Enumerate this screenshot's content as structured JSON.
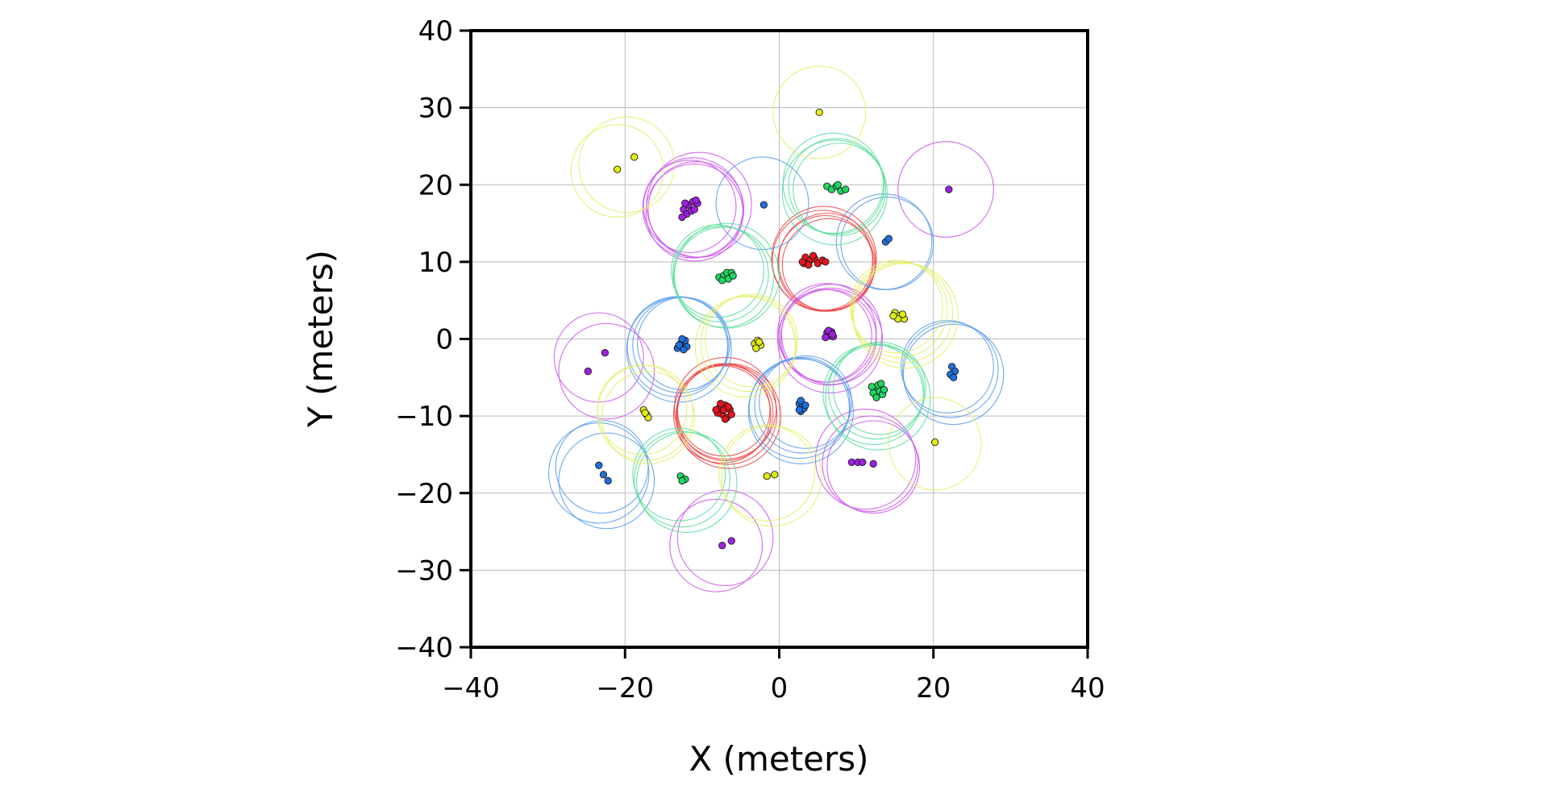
{
  "chart_data": {
    "type": "scatter",
    "title": "",
    "xlabel": "X (meters)",
    "ylabel": "Y (meters)",
    "xlim": [
      -40,
      40
    ],
    "ylim": [
      -40,
      40
    ],
    "xticks": [
      -40,
      -20,
      0,
      20,
      40
    ],
    "yticks": [
      -40,
      -30,
      -20,
      -10,
      0,
      10,
      20,
      30,
      40
    ],
    "xtick_labels": [
      "−40",
      "−20",
      "0",
      "20",
      "40"
    ],
    "ytick_labels": [
      "−40",
      "−30",
      "−20",
      "−10",
      "0",
      "10",
      "20",
      "30",
      "40"
    ],
    "grid": true,
    "legend": false,
    "colors": {
      "red": "#e8141c",
      "purple": "#a020e0",
      "blue": "#1f6fe0",
      "green": "#20d860",
      "yellow": "#e0ee10"
    },
    "ring_colors": {
      "red": "#ee4040",
      "purple": "#cc50ee",
      "blue": "#5599ee",
      "green": "#55dd99",
      "yellow": "#e4ee60"
    },
    "clusters": [
      {
        "color": "red",
        "points": [
          [
            -7.8,
            -9
          ],
          [
            -7,
            -8.6
          ],
          [
            -6.4,
            -9.2
          ],
          [
            -7.4,
            -9.8
          ],
          [
            -6.8,
            -10.2
          ],
          [
            -8,
            -9.6
          ],
          [
            -7.2,
            -9.2
          ],
          [
            -6.2,
            -9.8
          ],
          [
            -7.6,
            -8.4
          ],
          [
            -6.6,
            -8.8
          ],
          [
            -8.2,
            -9.2
          ],
          [
            -7,
            -10.4
          ]
        ],
        "rings": [
          [
            -7,
            -9.6,
            6.2
          ],
          [
            -6.8,
            -9.8,
            6.5
          ],
          [
            -7.2,
            -9.2,
            6.0
          ],
          [
            -6.6,
            -10,
            6.8
          ],
          [
            -7.4,
            -9.8,
            6.3
          ],
          [
            -7,
            -9,
            6.6
          ]
        ]
      },
      {
        "color": "red",
        "points": [
          [
            3.4,
            10.6
          ],
          [
            4,
            10.2
          ],
          [
            4.6,
            10.4
          ],
          [
            3.2,
            9.8
          ],
          [
            5,
            9.8
          ],
          [
            5.6,
            10.2
          ],
          [
            6,
            10
          ],
          [
            3.8,
            9.6
          ],
          [
            4.4,
            10.8
          ],
          [
            3,
            10
          ]
        ],
        "rings": [
          [
            6,
            9.8,
            6.2
          ],
          [
            5.6,
            10.2,
            6.5
          ],
          [
            6.4,
            9.6,
            6.0
          ],
          [
            5.8,
            10.4,
            6.8
          ],
          [
            6.2,
            10,
            6.3
          ]
        ]
      },
      {
        "color": "purple",
        "points": [
          [
            6.2,
            0.8
          ],
          [
            6.6,
            0.4
          ],
          [
            6.8,
            0.9
          ],
          [
            6,
            0.2
          ],
          [
            7,
            0.3
          ],
          [
            6.4,
            1.1
          ],
          [
            6.9,
            0.6
          ]
        ],
        "rings": [
          [
            6.4,
            0.2,
            6.2
          ],
          [
            6.8,
            0.6,
            6.5
          ],
          [
            6,
            0.4,
            6.0
          ],
          [
            6.6,
            -0.2,
            6.8
          ],
          [
            6.2,
            0.8,
            6.4
          ]
        ]
      },
      {
        "color": "purple",
        "points": [
          [
            -12.4,
            16.8
          ],
          [
            -11.8,
            17.4
          ],
          [
            -11.2,
            17.8
          ],
          [
            -10.6,
            17.6
          ],
          [
            -12,
            16.2
          ],
          [
            -11.4,
            16.6
          ],
          [
            -12.6,
            15.8
          ],
          [
            -11,
            16.8
          ],
          [
            -10.8,
            18
          ],
          [
            -12.2,
            17.6
          ]
        ],
        "rings": [
          [
            -11.2,
            17,
            6.5
          ],
          [
            -10.8,
            16.8,
            6.2
          ],
          [
            -11.6,
            17.2,
            6.0
          ],
          [
            -10.4,
            17.4,
            6.8
          ],
          [
            -11,
            16.4,
            6.3
          ]
        ]
      },
      {
        "color": "purple",
        "points": [
          [
            22,
            19.4
          ]
        ],
        "rings": [
          [
            21.6,
            19.4,
            6.2
          ]
        ]
      },
      {
        "color": "purple",
        "points": [
          [
            -22.6,
            -1.8
          ],
          [
            -24.8,
            -4.2
          ]
        ],
        "rings": [
          [
            -22.4,
            -4.2,
            6.2
          ],
          [
            -23.4,
            -2.4,
            5.8
          ]
        ]
      },
      {
        "color": "purple",
        "points": [
          [
            9.4,
            -16
          ],
          [
            10.2,
            -16
          ],
          [
            10.8,
            -16
          ],
          [
            12.2,
            -16.2
          ]
        ],
        "rings": [
          [
            11.8,
            -16.2,
            6.2
          ],
          [
            12.2,
            -16.6,
            6.0
          ],
          [
            11.2,
            -15.6,
            6.5
          ]
        ]
      },
      {
        "color": "purple",
        "points": [
          [
            -7.4,
            -26.8
          ],
          [
            -6.2,
            -26.2
          ]
        ],
        "rings": [
          [
            -8.2,
            -26.8,
            6.0
          ],
          [
            -7,
            -25.8,
            6.2
          ]
        ]
      },
      {
        "color": "blue",
        "points": [
          [
            -12.8,
            -0.6
          ],
          [
            -12.2,
            -0.2
          ],
          [
            -12.6,
            0
          ],
          [
            -12,
            -1
          ],
          [
            -13.2,
            -1.2
          ],
          [
            -12.4,
            -1.4
          ],
          [
            -13,
            -0.8
          ]
        ],
        "rings": [
          [
            -12.8,
            -0.8,
            6.2
          ],
          [
            -13.2,
            -1,
            6.5
          ],
          [
            -12.4,
            -0.6,
            6.0
          ],
          [
            -13,
            -1.4,
            6.8
          ]
        ]
      },
      {
        "color": "blue",
        "points": [
          [
            2.6,
            -8.4
          ],
          [
            3,
            -8.8
          ],
          [
            2.8,
            -9.4
          ],
          [
            3.2,
            -9
          ],
          [
            2.6,
            -9.2
          ],
          [
            3.4,
            -8.6
          ],
          [
            2.8,
            -8
          ]
        ],
        "rings": [
          [
            3,
            -8.6,
            6.2
          ],
          [
            2.6,
            -9,
            6.5
          ],
          [
            3.4,
            -8.2,
            6.0
          ],
          [
            2.8,
            -9.4,
            6.8
          ]
        ]
      },
      {
        "color": "blue",
        "points": [
          [
            -2,
            17.4
          ]
        ],
        "rings": [
          [
            -2.2,
            17.6,
            6.0
          ]
        ]
      },
      {
        "color": "blue",
        "points": [
          [
            13.8,
            12.6
          ],
          [
            14.2,
            13
          ]
        ],
        "rings": [
          [
            13.6,
            12.6,
            6.2
          ],
          [
            14,
            12.4,
            6.0
          ]
        ]
      },
      {
        "color": "blue",
        "points": [
          [
            22.4,
            -3.6
          ],
          [
            22.8,
            -4.2
          ],
          [
            22.2,
            -4.6
          ],
          [
            22.6,
            -5
          ]
        ],
        "rings": [
          [
            22.2,
            -4,
            6.2
          ],
          [
            22.6,
            -4.6,
            6.5
          ],
          [
            21.8,
            -3.6,
            6.0
          ]
        ]
      },
      {
        "color": "blue",
        "points": [
          [
            -23.4,
            -16.4
          ],
          [
            -22.8,
            -17.6
          ],
          [
            -22.2,
            -18.4
          ]
        ],
        "rings": [
          [
            -23,
            -16.6,
            6.0
          ],
          [
            -22.4,
            -18.4,
            6.2
          ],
          [
            -23.4,
            -17.4,
            6.5
          ]
        ]
      },
      {
        "color": "green",
        "points": [
          [
            -7.8,
            8
          ],
          [
            -7.2,
            8.2
          ],
          [
            -6.8,
            8.6
          ],
          [
            -6.2,
            8.6
          ],
          [
            -6.6,
            7.8
          ],
          [
            -6,
            8.2
          ],
          [
            -7.4,
            7.6
          ]
        ],
        "rings": [
          [
            -7.6,
            8.4,
            6.2
          ],
          [
            -7.2,
            8,
            6.5
          ],
          [
            -8,
            8.8,
            6.0
          ],
          [
            -6.8,
            8.2,
            6.8
          ]
        ]
      },
      {
        "color": "green",
        "points": [
          [
            6.2,
            19.8
          ],
          [
            6.8,
            19.4
          ],
          [
            7.4,
            19.8
          ],
          [
            8,
            19.2
          ],
          [
            7.6,
            20
          ],
          [
            8.6,
            19.4
          ]
        ],
        "rings": [
          [
            7.4,
            19.8,
            6.2
          ],
          [
            7,
            20.2,
            6.5
          ],
          [
            7.8,
            19.4,
            6.0
          ],
          [
            7.2,
            19,
            6.8
          ]
        ]
      },
      {
        "color": "green",
        "points": [
          [
            12.4,
            -6.4
          ],
          [
            13,
            -6.8
          ],
          [
            12.8,
            -6
          ],
          [
            13.4,
            -7.2
          ],
          [
            12.2,
            -7
          ],
          [
            13.6,
            -6.6
          ],
          [
            12.6,
            -7.6
          ],
          [
            13.2,
            -5.8
          ],
          [
            12,
            -6.2
          ]
        ],
        "rings": [
          [
            12.6,
            -6.8,
            6.2
          ],
          [
            12.2,
            -7.2,
            6.5
          ],
          [
            13,
            -6.4,
            6.0
          ],
          [
            12.8,
            -7.6,
            6.8
          ]
        ]
      },
      {
        "color": "green",
        "points": [
          [
            -12.8,
            -17.8
          ],
          [
            -12.2,
            -18.2
          ],
          [
            -12.6,
            -18.4
          ]
        ],
        "rings": [
          [
            -12.6,
            -18.2,
            6.2
          ],
          [
            -12,
            -18.6,
            6.5
          ],
          [
            -13,
            -17.6,
            6.0
          ]
        ]
      },
      {
        "color": "yellow",
        "points": [
          [
            -3.2,
            -0.6
          ],
          [
            -2.8,
            -0.2
          ],
          [
            -2.4,
            -0.8
          ],
          [
            -3,
            -1.2
          ],
          [
            -2.6,
            -0.4
          ]
        ],
        "rings": [
          [
            -4,
            -0.6,
            6.2
          ],
          [
            -4.4,
            -1,
            6.5
          ],
          [
            -3.6,
            -0.2,
            6.0
          ]
        ]
      },
      {
        "color": "yellow",
        "points": [
          [
            15,
            3.4
          ],
          [
            15.6,
            3
          ],
          [
            16.2,
            2.6
          ],
          [
            15.4,
            2.6
          ],
          [
            16,
            3.2
          ],
          [
            14.8,
            3
          ]
        ],
        "rings": [
          [
            15.6,
            3.8,
            6.2
          ],
          [
            16,
            3.4,
            6.5
          ],
          [
            15.2,
            4.2,
            6.0
          ],
          [
            16.4,
            3,
            6.8
          ]
        ]
      },
      {
        "color": "yellow",
        "points": [
          [
            -17.6,
            -9.2
          ],
          [
            -17.2,
            -9.8
          ],
          [
            -17,
            -10.2
          ],
          [
            -17.4,
            -9.6
          ]
        ],
        "rings": [
          [
            -17.4,
            -9.6,
            6.2
          ],
          [
            -17,
            -10.2,
            6.0
          ],
          [
            -17.8,
            -9.2,
            5.8
          ]
        ]
      },
      {
        "color": "yellow",
        "points": [
          [
            5.2,
            29.4
          ]
        ],
        "rings": [
          [
            5.2,
            29.4,
            6.0
          ]
        ]
      },
      {
        "color": "yellow",
        "points": [
          [
            -21,
            22
          ],
          [
            -18.8,
            23.6
          ]
        ],
        "rings": [
          [
            -19.8,
            22.6,
            6.2
          ],
          [
            -21,
            21.8,
            6.0
          ]
        ]
      },
      {
        "color": "yellow",
        "points": [
          [
            20.2,
            -13.4
          ]
        ],
        "rings": [
          [
            20.2,
            -13.6,
            6.0
          ]
        ]
      },
      {
        "color": "yellow",
        "points": [
          [
            -1.6,
            -17.8
          ],
          [
            -0.6,
            -17.6
          ]
        ],
        "rings": [
          [
            -1.6,
            -17.4,
            6.2
          ],
          [
            -1,
            -17.8,
            6.5
          ]
        ]
      }
    ]
  }
}
